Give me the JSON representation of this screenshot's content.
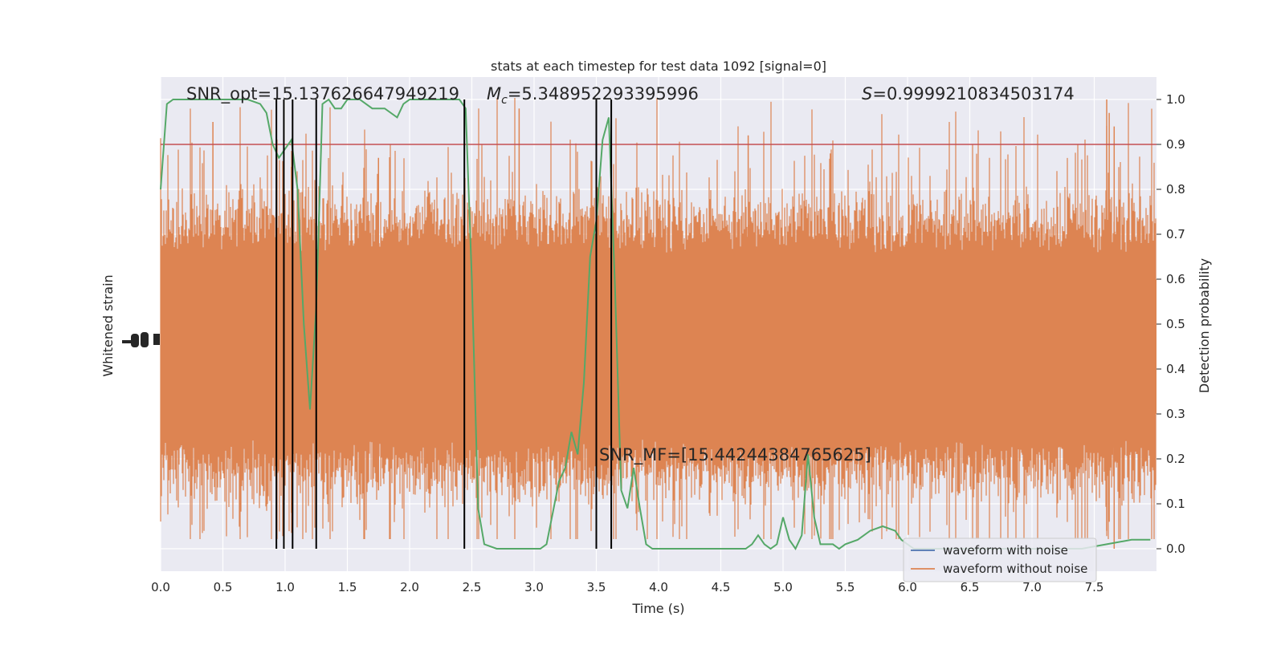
{
  "chart_data": {
    "type": "line",
    "title": "stats at each timestep for test data 1092 [signal=0]",
    "xlabel": "Time (s)",
    "ylabel_left": "Whitened strain",
    "ylabel_right": "Detection probability",
    "xlim": [
      0.0,
      8.0
    ],
    "ylim_right": [
      -0.05,
      1.05
    ],
    "x_ticks": [
      "0.0",
      "0.5",
      "1.0",
      "1.5",
      "2.0",
      "2.5",
      "3.0",
      "3.5",
      "4.0",
      "4.5",
      "5.0",
      "5.5",
      "6.0",
      "6.5",
      "7.0",
      "7.5"
    ],
    "x_tick_values": [
      0.0,
      0.5,
      1.0,
      1.5,
      2.0,
      2.5,
      3.0,
      3.5,
      4.0,
      4.5,
      5.0,
      5.5,
      6.0,
      6.5,
      7.0,
      7.5
    ],
    "y_right_ticks": [
      "0.0",
      "0.1",
      "0.2",
      "0.3",
      "0.4",
      "0.5",
      "0.6",
      "0.7",
      "0.8",
      "0.9",
      "1.0"
    ],
    "y_right_tick_values": [
      0.0,
      0.1,
      0.2,
      0.3,
      0.4,
      0.5,
      0.6,
      0.7,
      0.8,
      0.9,
      1.0
    ],
    "grid": true,
    "legend_position": "lower right",
    "annotations": {
      "snr_opt": "SNR_opt=15.137626647949219",
      "mc": "=5.348952293395996",
      "mc_symbol": "M",
      "mc_sub": "c",
      "s_stat": "=0.9999210834503174",
      "s_symbol": "S",
      "snr_mf": "SNR_MF=[15.44244384765625]"
    },
    "threshold": 0.9,
    "detection_times": [
      0.93,
      0.99,
      1.06,
      1.25,
      2.44,
      3.5,
      3.62
    ],
    "series": [
      {
        "name": "waveform with noise",
        "color": "#4c72b0",
        "kind": "strain"
      },
      {
        "name": "waveform without noise",
        "color": "#dd8452",
        "kind": "strain"
      },
      {
        "kind": "probability",
        "color": "#55a868",
        "x": [
          0.0,
          0.05,
          0.1,
          0.2,
          0.3,
          0.4,
          0.5,
          0.6,
          0.7,
          0.8,
          0.85,
          0.9,
          0.95,
          1.0,
          1.05,
          1.1,
          1.15,
          1.2,
          1.25,
          1.3,
          1.35,
          1.4,
          1.45,
          1.5,
          1.55,
          1.6,
          1.7,
          1.8,
          1.9,
          1.95,
          2.0,
          2.05,
          2.1,
          2.2,
          2.3,
          2.4,
          2.45,
          2.5,
          2.55,
          2.6,
          2.7,
          2.8,
          2.9,
          3.0,
          3.05,
          3.1,
          3.15,
          3.2,
          3.25,
          3.3,
          3.35,
          3.4,
          3.45,
          3.5,
          3.55,
          3.6,
          3.65,
          3.7,
          3.75,
          3.8,
          3.85,
          3.9,
          3.95,
          4.0,
          4.1,
          4.3,
          4.5,
          4.7,
          4.75,
          4.8,
          4.85,
          4.9,
          4.95,
          5.0,
          5.05,
          5.1,
          5.15,
          5.2,
          5.25,
          5.3,
          5.35,
          5.4,
          5.45,
          5.5,
          5.6,
          5.7,
          5.8,
          5.9,
          5.95,
          6.0,
          6.05,
          6.1,
          6.2,
          6.4,
          6.6,
          6.8,
          7.0,
          7.2,
          7.4,
          7.6,
          7.8,
          7.9,
          7.95
        ],
        "y": [
          0.8,
          0.99,
          1.0,
          1.0,
          1.0,
          1.0,
          1.0,
          1.0,
          1.0,
          0.99,
          0.97,
          0.9,
          0.87,
          0.89,
          0.91,
          0.8,
          0.5,
          0.31,
          0.54,
          0.99,
          1.0,
          0.98,
          0.98,
          1.0,
          1.0,
          1.0,
          0.98,
          0.98,
          0.96,
          0.99,
          1.0,
          1.0,
          1.0,
          1.0,
          1.0,
          1.0,
          0.98,
          0.6,
          0.09,
          0.01,
          0.0,
          0.0,
          0.0,
          0.0,
          0.0,
          0.01,
          0.08,
          0.15,
          0.18,
          0.26,
          0.21,
          0.37,
          0.65,
          0.73,
          0.91,
          0.96,
          0.58,
          0.13,
          0.09,
          0.18,
          0.09,
          0.01,
          0.0,
          0.0,
          0.0,
          0.0,
          0.0,
          0.0,
          0.01,
          0.03,
          0.01,
          0.0,
          0.01,
          0.07,
          0.02,
          0.0,
          0.03,
          0.21,
          0.07,
          0.01,
          0.01,
          0.01,
          0.0,
          0.01,
          0.02,
          0.04,
          0.05,
          0.04,
          0.02,
          0.01,
          0.0,
          0.0,
          0.0,
          0.0,
          0.0,
          0.0,
          0.0,
          0.0,
          0.0,
          0.01,
          0.02,
          0.02,
          0.02
        ]
      }
    ],
    "colors": {
      "plot_bg": "#eaeaf2",
      "grid": "#ffffff",
      "threshold": "#c44e52",
      "detection": "#000000"
    }
  }
}
